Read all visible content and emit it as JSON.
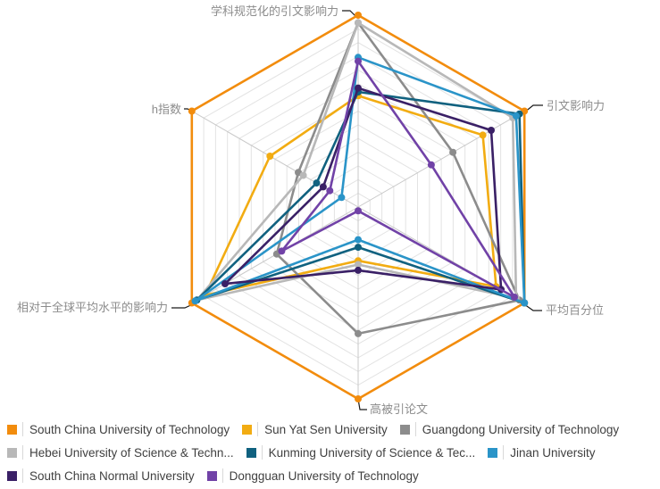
{
  "chart_data": {
    "type": "radar",
    "title": "",
    "max": 100,
    "rings": 14,
    "grid": true,
    "legend_position": "bottom",
    "axes": [
      "学科规范化的引文影响力",
      "引文影响力",
      "平均百分位",
      "高被引论文",
      "相对于全球平均水平的影响力",
      "h指数"
    ],
    "series": [
      {
        "name": "South China University of Technology",
        "color": "#F28C0D",
        "values": [
          100,
          100,
          100,
          100,
          100,
          100
        ]
      },
      {
        "name": "Sun Yat Sen University",
        "color": "#F2AC12",
        "values": [
          58,
          75,
          83,
          28,
          92,
          53
        ]
      },
      {
        "name": "Guangdong University of Technology",
        "color": "#8C8C8C",
        "values": [
          96,
          57,
          97,
          66,
          49,
          36
        ]
      },
      {
        "name": "Hebei University of Science & Techn...",
        "color": "#B8B8B8",
        "values": [
          96,
          93,
          95,
          30,
          97,
          33
        ]
      },
      {
        "name": "Kunming University of Science & Tec...",
        "color": "#10617F",
        "values": [
          60,
          97,
          100,
          21,
          97,
          25
        ]
      },
      {
        "name": "Jinan University",
        "color": "#2A94C8",
        "values": [
          78,
          95,
          100,
          17,
          98,
          10
        ]
      },
      {
        "name": "South China Normal University",
        "color": "#3A2066",
        "values": [
          62,
          80,
          86,
          33,
          80,
          21
        ]
      },
      {
        "name": "Dongguan University of Technology",
        "color": "#7142A7",
        "values": [
          76,
          44,
          94,
          2,
          46,
          17
        ]
      }
    ],
    "legend_rows": [
      [
        0,
        1,
        2
      ],
      [
        3,
        4,
        5
      ],
      [
        6,
        7
      ]
    ]
  }
}
